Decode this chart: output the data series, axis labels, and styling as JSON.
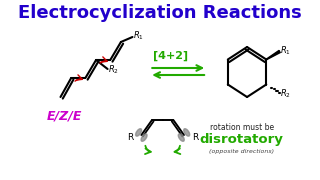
{
  "title": "Electrocyclization Reactions",
  "title_color": "#2200cc",
  "title_fontsize": 13,
  "title_fontweight": "bold",
  "bg_color": "#ffffff",
  "arrow_label": "[4+2]",
  "arrow_color": "#22aa00",
  "eze_label": "E/Z/E",
  "eze_color": "#cc00cc",
  "eze_fontsize": 9,
  "disrotatory_label": "disrotatory",
  "disrotatory_color": "#22aa00",
  "rotation_text": "rotation must be",
  "rotation_color": "#222222",
  "opposite_text": "(opposite directions)",
  "opposite_color": "#444444",
  "red_arrow_color": "#cc0000",
  "gray_color": "#888888"
}
